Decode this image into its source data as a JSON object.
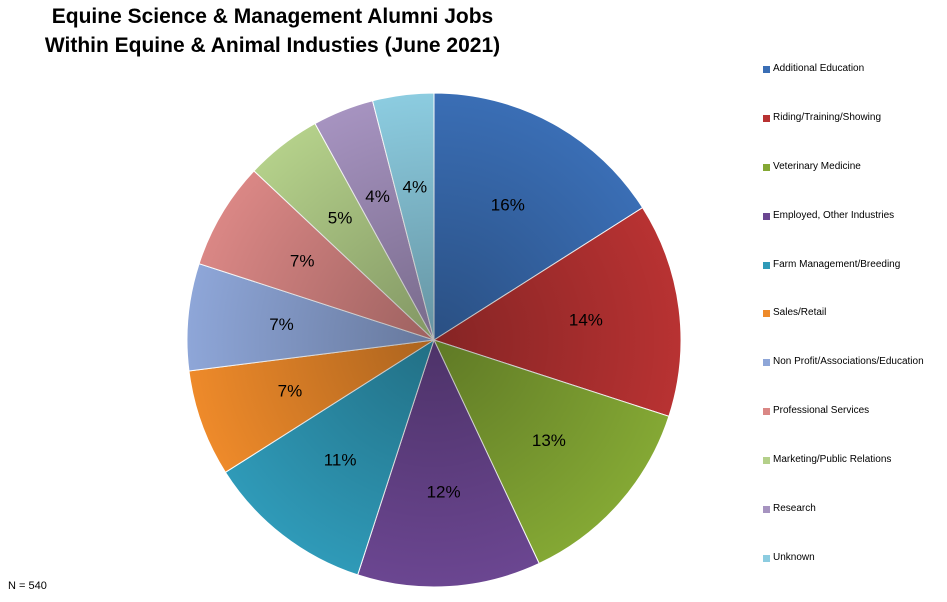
{
  "chart_data": {
    "type": "pie",
    "title_lines": [
      "Equine Science & Management Alumni Jobs",
      "Within Equine & Animal Industies (June 2021)"
    ],
    "slices": [
      {
        "name": "Additional Education",
        "value": 16,
        "label": "16%",
        "color": "#3a6eb5"
      },
      {
        "name": "Riding/Training/Showing",
        "value": 14,
        "label": "14%",
        "color": "#b83232"
      },
      {
        "name": "Veterinary Medicine",
        "value": 13,
        "label": "13%",
        "color": "#84a834"
      },
      {
        "name": "Employed, Other Industries",
        "value": 12,
        "label": "12%",
        "color": "#6b4691"
      },
      {
        "name": "Farm Management/Breeding",
        "value": 11,
        "label": "11%",
        "color": "#2f9ab8"
      },
      {
        "name": "Sales/Retail",
        "value": 7,
        "label": "7%",
        "color": "#ee8a2a"
      },
      {
        "name": "Non Profit/Associations/Education",
        "value": 7,
        "label": "7%",
        "color": "#8ea6d8"
      },
      {
        "name": "Professional Services",
        "value": 7,
        "label": "7%",
        "color": "#da8785"
      },
      {
        "name": "Marketing/Public Relations",
        "value": 5,
        "label": "5%",
        "color": "#b4d08a"
      },
      {
        "name": "Research",
        "value": 4,
        "label": "4%",
        "color": "#a693c0"
      },
      {
        "name": "Unknown",
        "value": 4,
        "label": "4%",
        "color": "#8ccce0"
      }
    ],
    "legend_position": "right",
    "note": "N = 540"
  }
}
